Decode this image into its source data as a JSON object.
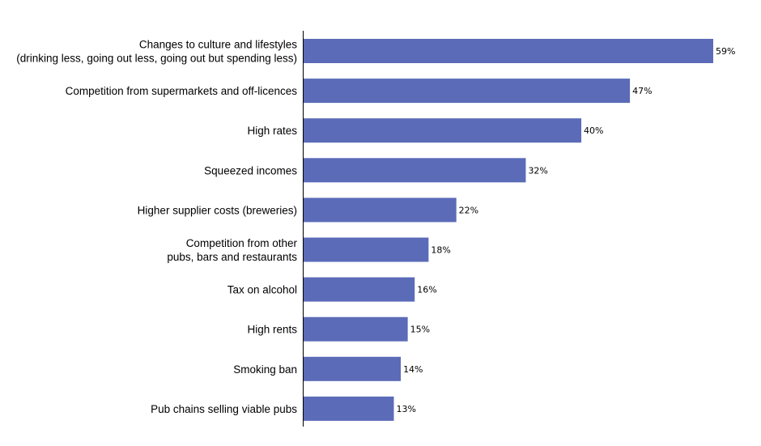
{
  "chart_data": {
    "type": "bar",
    "orientation": "horizontal",
    "categories": [
      [
        "Changes to culture and lifestyles",
        "(drinking less, going out less, going out but spending less)"
      ],
      [
        "Competition from supermarkets and off-licences"
      ],
      [
        "High rates"
      ],
      [
        "Squeezed incomes"
      ],
      [
        "Higher supplier costs (breweries)"
      ],
      [
        "Competition from other",
        "pubs, bars and restaurants"
      ],
      [
        "Tax on alcohol"
      ],
      [
        "High rents"
      ],
      [
        "Smoking ban"
      ],
      [
        "Pub chains selling viable pubs"
      ]
    ],
    "values": [
      59,
      47,
      40,
      32,
      22,
      18,
      16,
      15,
      14,
      13
    ],
    "value_labels": [
      "59%",
      "47%",
      "40%",
      "32%",
      "22%",
      "18%",
      "16%",
      "15%",
      "14%",
      "13%"
    ],
    "unit": "%",
    "xlim": [
      0,
      59
    ],
    "grid": false,
    "legend": "none",
    "bar_color": "#5b6bb8"
  }
}
